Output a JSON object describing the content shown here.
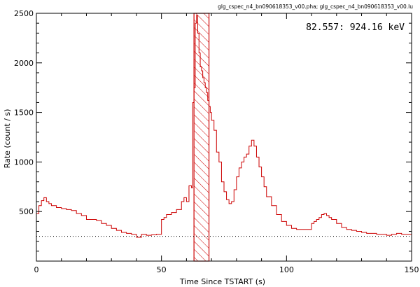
{
  "chart_data": {
    "type": "line",
    "title": "glg_cspec_n4_bn090618353_v00.pha; glg_cspec_n4_bn090618353_v00.lu",
    "annotation": "82.557: 924.16 keV",
    "xlabel": "Time Since TSTART (s)",
    "ylabel": "Rate (count / s)",
    "xlim": [
      0,
      150
    ],
    "ylim": [
      0,
      2500
    ],
    "x_ticks": [
      0,
      50,
      100,
      150
    ],
    "y_ticks": [
      500,
      1000,
      1500,
      2000,
      2500
    ],
    "grid": false,
    "legend": "none",
    "background_level": 250,
    "highlight_interval": [
      63,
      69
    ],
    "colors": {
      "lightcurve": "#cc0000",
      "highlight": "#cc0000",
      "axes": "#000000",
      "background_line": "#000000"
    },
    "series": [
      {
        "style": "histogram-step",
        "x": [
          0,
          1,
          2,
          3,
          4,
          5,
          6,
          8,
          10,
          12,
          14,
          16,
          18,
          20,
          22,
          24,
          26,
          28,
          30,
          32,
          34,
          36,
          38,
          40,
          42,
          44,
          46,
          48,
          50,
          51,
          52,
          54,
          56,
          58,
          59,
          60,
          61,
          62,
          62.5,
          63,
          63.5,
          64,
          64.5,
          65,
          65.5,
          66,
          66.5,
          67,
          67.5,
          68,
          68.5,
          69,
          69.5,
          70,
          71,
          72,
          73,
          74,
          75,
          76,
          77,
          78,
          79,
          80,
          81,
          82,
          83,
          84,
          85,
          86,
          87,
          88,
          89,
          90,
          91,
          92,
          94,
          96,
          98,
          100,
          102,
          104,
          106,
          108,
          110,
          111,
          112,
          113,
          114,
          115,
          116,
          117,
          118,
          120,
          122,
          124,
          126,
          128,
          130,
          132,
          134,
          136,
          138,
          140,
          142,
          144,
          146,
          148,
          150
        ],
        "values": [
          480,
          560,
          610,
          640,
          600,
          580,
          560,
          540,
          530,
          520,
          510,
          480,
          460,
          420,
          420,
          410,
          380,
          360,
          330,
          310,
          290,
          280,
          270,
          240,
          270,
          260,
          265,
          270,
          420,
          440,
          470,
          490,
          520,
          600,
          640,
          600,
          760,
          740,
          1600,
          1750,
          2400,
          2480,
          2300,
          2100,
          1960,
          1920,
          1850,
          1800,
          1750,
          1700,
          1620,
          1560,
          1500,
          1420,
          1320,
          1100,
          1000,
          800,
          700,
          620,
          580,
          600,
          720,
          850,
          940,
          1000,
          1050,
          1080,
          1160,
          1220,
          1160,
          1050,
          950,
          850,
          750,
          650,
          560,
          470,
          400,
          360,
          330,
          320,
          320,
          320,
          380,
          400,
          420,
          440,
          470,
          480,
          460,
          440,
          420,
          380,
          340,
          320,
          310,
          300,
          290,
          280,
          280,
          270,
          270,
          260,
          270,
          280,
          270,
          270,
          270
        ]
      }
    ]
  }
}
